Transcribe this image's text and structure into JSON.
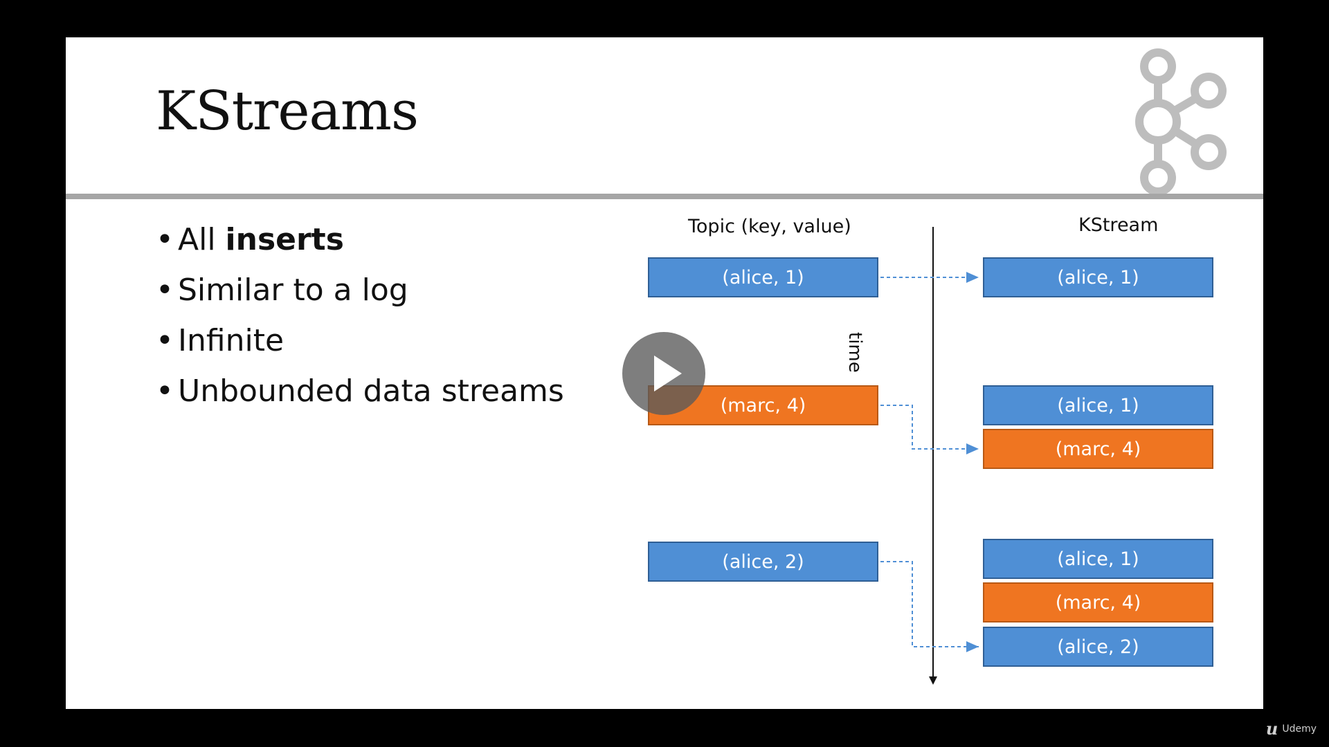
{
  "slide": {
    "title": "KStreams",
    "bullets": [
      {
        "prefix": "All ",
        "emphasis": "inserts"
      },
      {
        "text": "Similar to a log"
      },
      {
        "text": "Infinite"
      },
      {
        "text": "Unbounded data streams"
      }
    ]
  },
  "diagram": {
    "left_header": "Topic (key, value)",
    "right_header": "KStream",
    "time_label": "time",
    "topic_records": [
      {
        "label": "(alice, 1)",
        "color": "blue"
      },
      {
        "label": "(marc, 4)",
        "color": "orange"
      },
      {
        "label": "(alice, 2)",
        "color": "blue"
      }
    ],
    "kstream_states": [
      [
        {
          "label": "(alice, 1)",
          "color": "blue"
        }
      ],
      [
        {
          "label": "(alice, 1)",
          "color": "blue"
        },
        {
          "label": "(marc, 4)",
          "color": "orange"
        }
      ],
      [
        {
          "label": "(alice, 1)",
          "color": "blue"
        },
        {
          "label": "(marc, 4)",
          "color": "orange"
        },
        {
          "label": "(alice, 2)",
          "color": "blue"
        }
      ]
    ]
  },
  "colors": {
    "blue": "#4f8fd5",
    "orange": "#ef7521",
    "rule": "#a6a6a6",
    "logo": "#bdbdbd",
    "arrow": "#4f8fd5"
  },
  "icons": {
    "logo": "kafka-logo",
    "play": "play-icon",
    "watermark": "udemy-logo"
  },
  "watermark": {
    "text": "Udemy"
  }
}
